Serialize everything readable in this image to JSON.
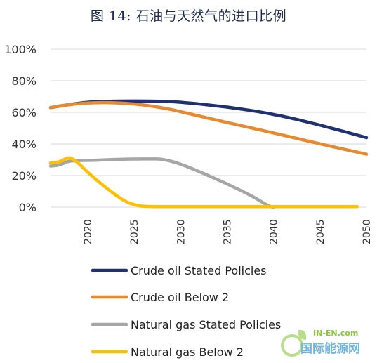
{
  "title": "图 14: 石油与天然气的进口比例",
  "watermark": {
    "small": "IN-EN.com",
    "big": "国际能源网"
  },
  "chart_data": {
    "type": "line",
    "title": "图 14: 石油与天然气的进口比例",
    "xlabel": "",
    "ylabel": "",
    "xlim": [
      2016,
      2050
    ],
    "ylim": [
      0,
      100
    ],
    "x_ticks": [
      "2020",
      "2025",
      "2030",
      "2035",
      "2040",
      "2045",
      "2050"
    ],
    "y_ticks": [
      "0%",
      "20%",
      "40%",
      "60%",
      "80%",
      "100%"
    ],
    "grid": "horizontal",
    "legend_position": "bottom",
    "series": [
      {
        "name": "Crude oil Stated Policies",
        "color": "#1f3170",
        "x": [
          2016,
          2018,
          2020,
          2022,
          2025,
          2028,
          2030,
          2035,
          2040,
          2045,
          2050
        ],
        "y": [
          63,
          65,
          66.5,
          67,
          67.2,
          67,
          66.5,
          63.5,
          59,
          52,
          44
        ]
      },
      {
        "name": "Crude oil Below 2",
        "color": "#e8892f",
        "x": [
          2016,
          2018,
          2020,
          2022,
          2025,
          2028,
          2030,
          2035,
          2040,
          2045,
          2050
        ],
        "y": [
          63,
          65,
          66,
          66.3,
          65.5,
          63,
          60.5,
          53.5,
          47,
          40,
          33.5
        ]
      },
      {
        "name": "Natural gas Stated Policies",
        "color": "#a6a6a6",
        "x": [
          2016,
          2017,
          2018,
          2020,
          2022,
          2025,
          2027,
          2028,
          2030,
          2033,
          2036,
          2038,
          2039.5,
          2040
        ],
        "y": [
          26,
          26.5,
          29.5,
          29.5,
          30,
          30.5,
          30.5,
          30.5,
          27.5,
          20,
          12,
          6,
          0.5,
          0
        ]
      },
      {
        "name": "Natural gas Below 2",
        "color": "#ffc000",
        "x": [
          2016,
          2017,
          2018,
          2019,
          2020,
          2022,
          2024,
          2025,
          2026,
          2030,
          2035,
          2040,
          2045,
          2049
        ],
        "y": [
          28,
          28.5,
          32,
          28,
          22,
          12,
          3.5,
          1.5,
          0.3,
          0.3,
          0.3,
          0.3,
          0.3,
          0.3
        ]
      }
    ]
  }
}
